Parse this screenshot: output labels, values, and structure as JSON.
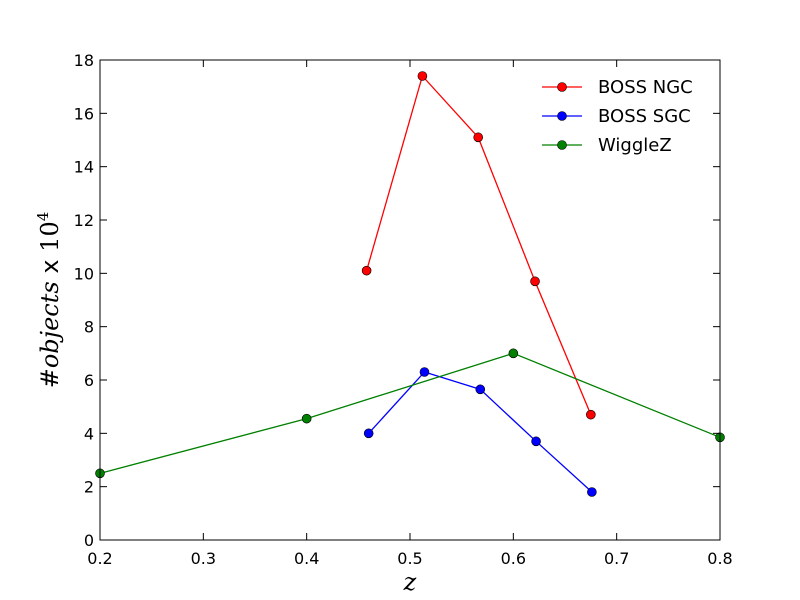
{
  "chart_data": {
    "type": "line",
    "title": "",
    "xlabel": "z",
    "ylabel": "#objects x 10^4",
    "ylabel_main": "#",
    "ylabel_italic": "objects",
    "ylabel_times": " x ",
    "ylabel_base": "10",
    "ylabel_exp": "4",
    "xlim": [
      0.2,
      0.8
    ],
    "ylim": [
      0,
      18
    ],
    "xticks": [
      0.2,
      0.3,
      0.4,
      0.5,
      0.6,
      0.7,
      0.8
    ],
    "xtick_labels": [
      "0.2",
      "0.3",
      "0.4",
      "0.5",
      "0.6",
      "0.7",
      "0.8"
    ],
    "yticks": [
      0,
      2,
      4,
      6,
      8,
      10,
      12,
      14,
      16,
      18
    ],
    "ytick_labels": [
      "0",
      "2",
      "4",
      "6",
      "8",
      "10",
      "12",
      "14",
      "16",
      "18"
    ],
    "grid": false,
    "legend_position": "top-right",
    "series": [
      {
        "name": "BOSS NGC",
        "color": "#ff0000",
        "x": [
          0.458,
          0.512,
          0.566,
          0.621,
          0.675
        ],
        "y": [
          10.1,
          17.4,
          15.1,
          9.7,
          4.7
        ]
      },
      {
        "name": "BOSS SGC",
        "color": "#0000ff",
        "x": [
          0.46,
          0.514,
          0.568,
          0.622,
          0.676
        ],
        "y": [
          4.0,
          6.3,
          5.65,
          3.7,
          1.8
        ]
      },
      {
        "name": "WiggleZ",
        "color": "#008000",
        "x": [
          0.2,
          0.4,
          0.6,
          0.8
        ],
        "y": [
          2.5,
          4.55,
          7.0,
          3.85
        ]
      }
    ]
  }
}
